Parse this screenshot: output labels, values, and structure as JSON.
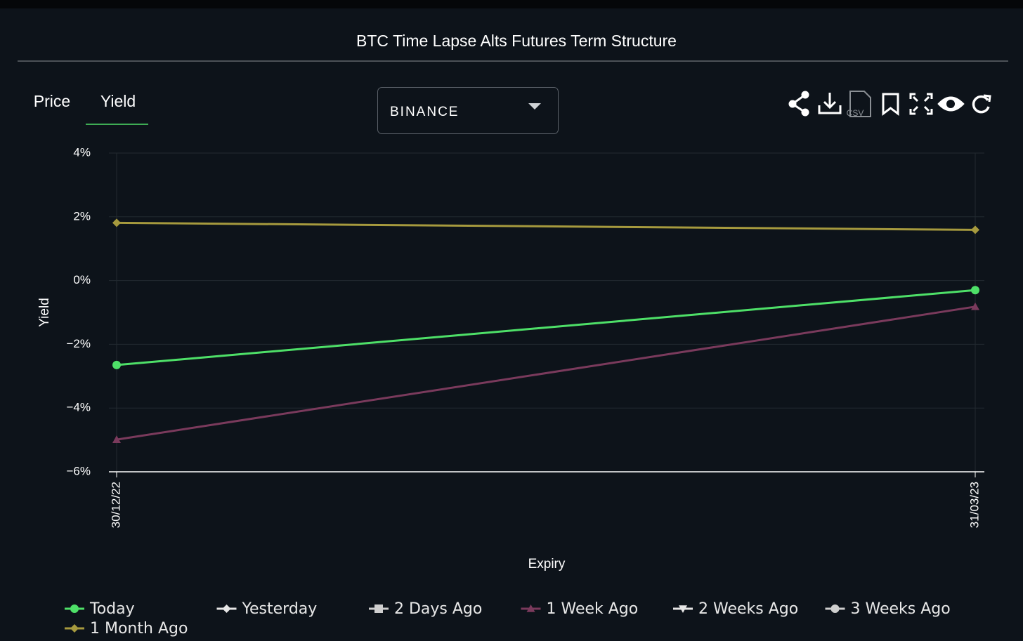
{
  "header": {
    "title": "BTC Time Lapse Alts Futures Term Structure",
    "tabs": [
      "Price",
      "Yield"
    ],
    "exchange": "BINANCE",
    "csv_label": "CSV"
  },
  "chart_data": {
    "type": "line",
    "xlabel": "Expiry",
    "ylabel": "Yield",
    "categories": [
      "30/12/22",
      "31/03/23"
    ],
    "ylim": [
      -6,
      4
    ],
    "yticks": [
      {
        "value": -6,
        "label": "−6%"
      },
      {
        "value": -4,
        "label": "−4%"
      },
      {
        "value": -2,
        "label": "−2%"
      },
      {
        "value": 0,
        "label": "0%"
      },
      {
        "value": 2,
        "label": "2%"
      },
      {
        "value": 4,
        "label": "4%"
      }
    ],
    "grid": true,
    "series": [
      {
        "name": "Today",
        "color": "#4ee068",
        "marker": "circle",
        "values": [
          -2.65,
          -0.3
        ]
      },
      {
        "name": "Yesterday",
        "color": "#e6e6e6",
        "marker": "diamond",
        "values": [
          null,
          null
        ]
      },
      {
        "name": "2 Days Ago",
        "color": "#cfcfcf",
        "marker": "square",
        "values": [
          null,
          null
        ]
      },
      {
        "name": "1 Week Ago",
        "color": "#7a3a5c",
        "marker": "triangle",
        "values": [
          -4.99,
          -0.82
        ]
      },
      {
        "name": "2 Weeks Ago",
        "color": "#e6e6e6",
        "marker": "triangle-down",
        "values": [
          null,
          null
        ]
      },
      {
        "name": "3 Weeks Ago",
        "color": "#cfcfcf",
        "marker": "circle",
        "values": [
          null,
          null
        ]
      },
      {
        "name": "1 Month Ago",
        "color": "#a69a3e",
        "marker": "diamond",
        "values": [
          1.81,
          1.59
        ]
      }
    ]
  }
}
